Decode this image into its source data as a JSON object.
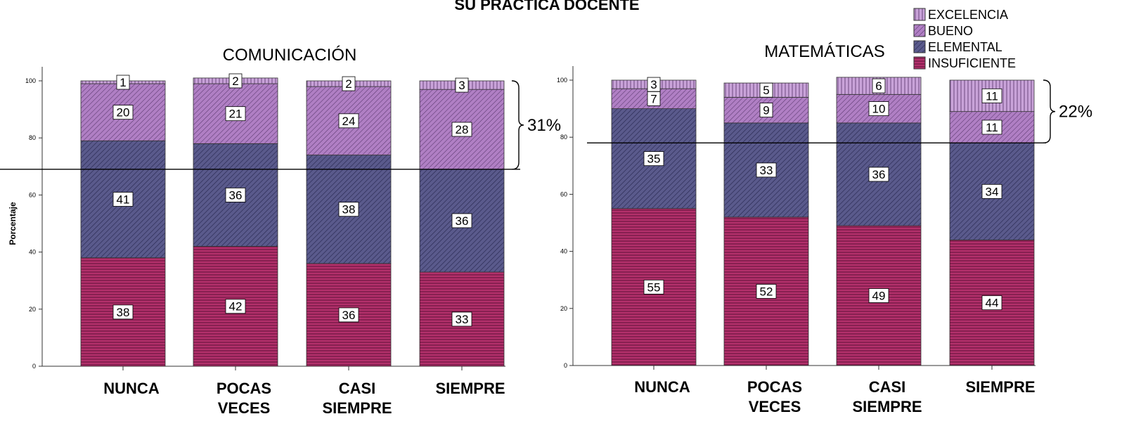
{
  "page": {
    "title": "SU PRÁCTICA DOCENTE"
  },
  "legend": {
    "items": [
      {
        "label": "EXCELENCIA",
        "color": "#c9a3d9",
        "pattern": "vertical"
      },
      {
        "label": "BUENO",
        "color": "#b07fc4",
        "pattern": "diagonal"
      },
      {
        "label": "ELEMENTAL",
        "color": "#5a5a8c",
        "pattern": "diagonal"
      },
      {
        "label": "INSUFICIENTE",
        "color": "#b3306b",
        "pattern": "horizontal"
      }
    ]
  },
  "chart_data": [
    {
      "type": "bar",
      "stacked": true,
      "title": "COMUNICACIÓN",
      "ylabel": "Porcentaje",
      "ylim": [
        0,
        100
      ],
      "yticks": [
        0,
        20,
        40,
        60,
        80,
        100
      ],
      "categories": [
        "NUNCA",
        "POCAS VECES",
        "CASI SIEMPRE",
        "SIEMPRE"
      ],
      "category_lines": [
        [
          "NUNCA"
        ],
        [
          "POCAS",
          "VECES"
        ],
        [
          "CASI",
          "SIEMPRE"
        ],
        [
          "SIEMPRE"
        ]
      ],
      "series": [
        {
          "name": "INSUFICIENTE",
          "values": [
            38,
            42,
            36,
            33
          ]
        },
        {
          "name": "ELEMENTAL",
          "values": [
            41,
            36,
            38,
            36
          ]
        },
        {
          "name": "BUENO",
          "values": [
            20,
            21,
            24,
            28
          ]
        },
        {
          "name": "EXCELENCIA",
          "values": [
            1,
            2,
            2,
            3
          ]
        }
      ],
      "reference_line_value": 69,
      "bracket": {
        "from": 69,
        "to": 100,
        "label": "31%"
      }
    },
    {
      "type": "bar",
      "stacked": true,
      "title": "MATEMÁTICAS",
      "ylabel": "",
      "ylim": [
        0,
        100
      ],
      "yticks": [
        0,
        20,
        40,
        60,
        80,
        100
      ],
      "categories": [
        "NUNCA",
        "POCAS VECES",
        "CASI SIEMPRE",
        "SIEMPRE"
      ],
      "category_lines": [
        [
          "NUNCA"
        ],
        [
          "POCAS",
          "VECES"
        ],
        [
          "CASI",
          "SIEMPRE"
        ],
        [
          "SIEMPRE"
        ]
      ],
      "series": [
        {
          "name": "INSUFICIENTE",
          "values": [
            55,
            52,
            49,
            44
          ]
        },
        {
          "name": "ELEMENTAL",
          "values": [
            35,
            33,
            36,
            34
          ]
        },
        {
          "name": "BUENO",
          "values": [
            7,
            9,
            10,
            11
          ]
        },
        {
          "name": "EXCELENCIA",
          "values": [
            3,
            5,
            6,
            11
          ]
        }
      ],
      "reference_line_value": 78,
      "bracket": {
        "from": 78,
        "to": 100,
        "label": "22%"
      }
    }
  ]
}
